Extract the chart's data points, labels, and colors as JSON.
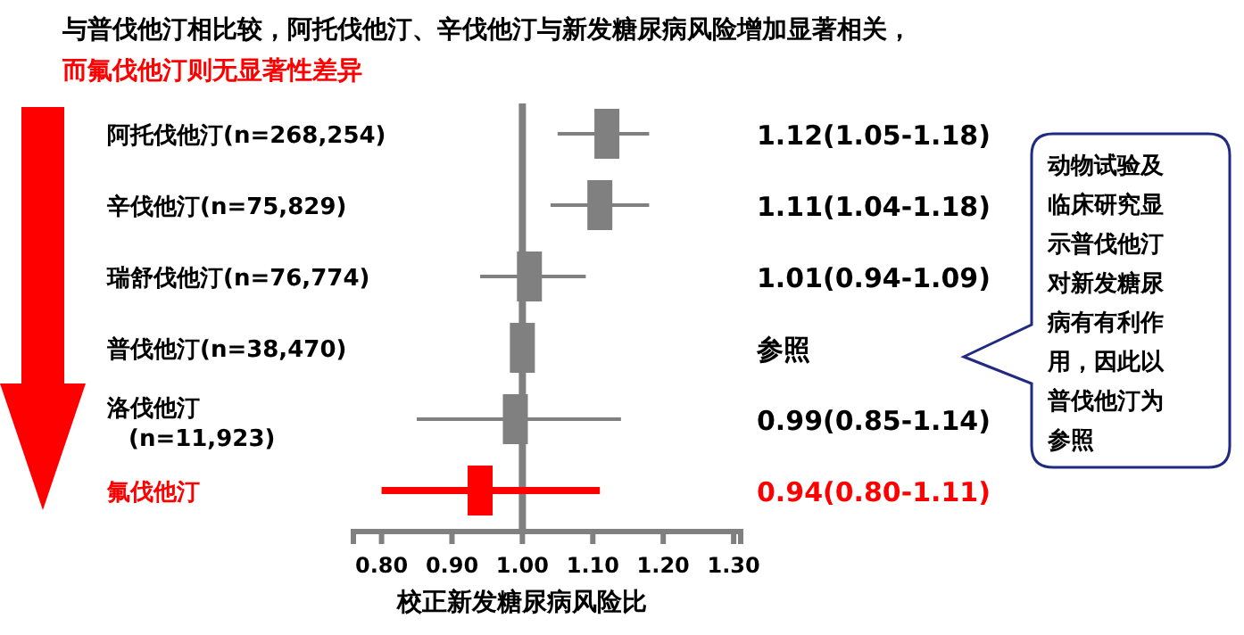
{
  "chart_data": {
    "type": "scatter",
    "orientation": "horizontal",
    "marker": "square",
    "title": "与普伐他汀相比较，阿托伐他汀、辛伐他汀与新发糖尿病风险增加显著相关，",
    "subtitle": "而氟伐他汀则无显著性差异",
    "categories": [
      "阿托伐他汀(n=268,254)",
      "辛伐他汀(n=75,829)",
      "瑞舒伐他汀(n=76,774)",
      "普伐他汀(n=38,470)",
      "洛伐他汀\n(n=11,923)",
      "氟伐他汀"
    ],
    "values": [
      1.12,
      1.11,
      1.01,
      1.0,
      0.99,
      0.94
    ],
    "errors": [
      [
        1.05,
        1.18
      ],
      [
        1.04,
        1.18
      ],
      [
        0.94,
        1.09
      ],
      null,
      [
        0.85,
        1.14
      ],
      [
        0.8,
        1.11
      ]
    ],
    "colors": [
      "#808080",
      "#808080",
      "#808080",
      "#808080",
      "#808080",
      "#ff0000"
    ],
    "xlabel": "校正新发糖尿病风险比",
    "xlim": [
      0.76,
      1.31
    ],
    "xticks": [
      {
        "value": 0.8,
        "label": "0.80"
      },
      {
        "value": 0.9,
        "label": "0.90"
      },
      {
        "value": 1.0,
        "label": "1.00"
      },
      {
        "value": 1.1,
        "label": "1.10"
      },
      {
        "value": 1.2,
        "label": "1.20"
      },
      {
        "value": 1.3,
        "label": "1.30"
      }
    ],
    "ref_lines": [
      {
        "axis": "x",
        "value": 1.0,
        "color": "#808080"
      }
    ],
    "grid": false,
    "annotations": [
      "1.12(1.05-1.18)",
      "1.11(1.04-1.18)",
      "1.01(0.94-1.09)",
      "参照",
      "0.99(0.85-1.14)",
      "0.94(0.80-1.11)",
      "动物试验及临床研究显示普伐他汀对新发糖尿病有有利作用，因此以普伐他汀为参照"
    ]
  }
}
